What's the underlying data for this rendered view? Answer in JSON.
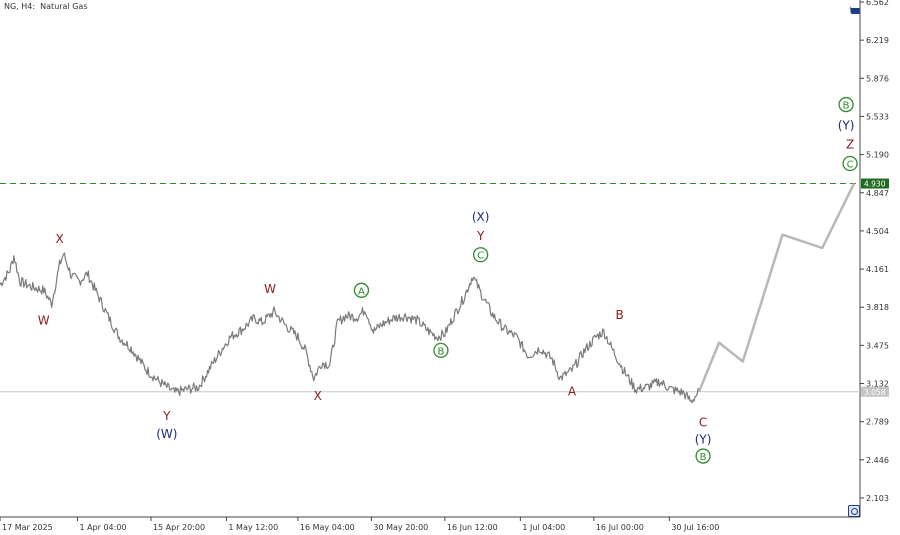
{
  "header": {
    "symbol": "NG, H4:",
    "name": "Natural Gas"
  },
  "corner_label": "t",
  "colors": {
    "price": "#7a7a7a",
    "projection": "#b8b8b8",
    "target_line": "#2e8b2e",
    "target_badge": "#1f6b1f",
    "current_line": "#c8c8c8",
    "current_badge": "#c4c4c4",
    "red": "#8b1a1a",
    "navy": "#1c2a78",
    "green": "#2e8b2e",
    "axis_text": "#333333"
  },
  "chart_data": {
    "type": "line",
    "title": "Natural Gas",
    "xlabel": "",
    "ylabel": "",
    "ylim": [
      1.95,
      6.562
    ],
    "x_ticks": [
      "17 Mar 2025",
      "1 Apr 04:00",
      "15 Apr 20:00",
      "1 May 12:00",
      "16 May 04:00",
      "30 May 20:00",
      "16 Jun 12:00",
      "1 Jul 04:00",
      "16 Jul 00:00",
      "30 Jul 16:00"
    ],
    "y_ticks": [
      "6.562",
      "6.219",
      "5.876",
      "5.533",
      "5.190",
      "4.847",
      "4.504",
      "4.161",
      "3.818",
      "3.475",
      "3.132",
      "2.789",
      "2.446",
      "2.103"
    ],
    "price_anchors": [
      [
        0,
        4.02
      ],
      [
        2.5,
        4.15
      ],
      [
        3.5,
        4.28
      ],
      [
        5,
        4.05
      ],
      [
        8,
        4.0
      ],
      [
        11,
        3.97
      ],
      [
        13,
        3.85
      ],
      [
        15,
        4.2
      ],
      [
        16,
        4.3
      ],
      [
        18,
        4.1
      ],
      [
        20,
        4.05
      ],
      [
        22,
        4.12
      ],
      [
        25,
        3.9
      ],
      [
        27,
        3.75
      ],
      [
        30,
        3.55
      ],
      [
        33,
        3.45
      ],
      [
        37,
        3.25
      ],
      [
        40,
        3.15
      ],
      [
        44,
        3.05
      ],
      [
        47,
        3.08
      ],
      [
        50,
        3.1
      ],
      [
        53,
        3.28
      ],
      [
        56,
        3.45
      ],
      [
        58,
        3.55
      ],
      [
        61,
        3.62
      ],
      [
        64,
        3.72
      ],
      [
        66,
        3.68
      ],
      [
        69,
        3.78
      ],
      [
        72,
        3.65
      ],
      [
        75,
        3.55
      ],
      [
        77,
        3.42
      ],
      [
        79,
        3.18
      ],
      [
        81,
        3.32
      ],
      [
        83,
        3.3
      ],
      [
        85,
        3.68
      ],
      [
        87,
        3.74
      ],
      [
        90,
        3.73
      ],
      [
        92,
        3.8
      ],
      [
        94,
        3.6
      ],
      [
        96,
        3.66
      ],
      [
        99,
        3.72
      ],
      [
        102,
        3.74
      ],
      [
        105,
        3.7
      ],
      [
        108,
        3.6
      ],
      [
        110,
        3.55
      ],
      [
        112,
        3.58
      ],
      [
        114,
        3.72
      ],
      [
        117,
        3.92
      ],
      [
        119,
        4.1
      ],
      [
        121,
        3.95
      ],
      [
        124,
        3.75
      ],
      [
        127,
        3.62
      ],
      [
        130,
        3.55
      ],
      [
        133,
        3.38
      ],
      [
        136,
        3.45
      ],
      [
        139,
        3.35
      ],
      [
        141,
        3.18
      ],
      [
        144,
        3.25
      ],
      [
        147,
        3.42
      ],
      [
        150,
        3.55
      ],
      [
        152,
        3.6
      ],
      [
        154,
        3.45
      ],
      [
        157,
        3.25
      ],
      [
        160,
        3.08
      ],
      [
        163,
        3.1
      ],
      [
        166,
        3.15
      ],
      [
        169,
        3.08
      ],
      [
        172,
        3.05
      ],
      [
        174,
        2.97
      ],
      [
        176,
        3.06
      ]
    ],
    "projection": [
      [
        176,
        3.06
      ],
      [
        181,
        3.5
      ],
      [
        187,
        3.33
      ],
      [
        197,
        4.47
      ],
      [
        207,
        4.35
      ],
      [
        215,
        4.93
      ]
    ],
    "target_level": 4.93,
    "target_label": "4.930",
    "current_level": 3.058,
    "current_label": "3.058",
    "annotations": [
      {
        "text": "X",
        "x": 15,
        "y": 4.43,
        "color": "red"
      },
      {
        "text": "W",
        "x": 11,
        "y": 3.7,
        "color": "red"
      },
      {
        "text": "Y",
        "x": 42,
        "y": 2.84,
        "color": "red"
      },
      {
        "text": "(W)",
        "x": 42,
        "y": 2.68,
        "color": "navy"
      },
      {
        "text": "W",
        "x": 68,
        "y": 3.98,
        "color": "red"
      },
      {
        "text": "X",
        "x": 80,
        "y": 3.02,
        "color": "red"
      },
      {
        "text": "A",
        "x": 91,
        "y": 3.97,
        "color": "green",
        "circled": true
      },
      {
        "text": "B",
        "x": 111,
        "y": 3.43,
        "color": "green",
        "circled": true
      },
      {
        "text": "(X)",
        "x": 121,
        "y": 4.63,
        "color": "navy"
      },
      {
        "text": "Y",
        "x": 121,
        "y": 4.46,
        "color": "red"
      },
      {
        "text": "C",
        "x": 121,
        "y": 4.29,
        "color": "green",
        "circled": true
      },
      {
        "text": "B",
        "x": 156,
        "y": 3.75,
        "color": "red"
      },
      {
        "text": "A",
        "x": 144,
        "y": 3.06,
        "color": "red"
      },
      {
        "text": "C",
        "x": 177,
        "y": 2.78,
        "color": "red"
      },
      {
        "text": "(Y)",
        "x": 177,
        "y": 2.63,
        "color": "navy"
      },
      {
        "text": "B",
        "x": 177,
        "y": 2.48,
        "color": "green",
        "circled": true
      },
      {
        "text": "B",
        "x": 213,
        "y": 5.64,
        "color": "green",
        "circled": true
      },
      {
        "text": "(Y)",
        "x": 213,
        "y": 5.45,
        "color": "navy"
      },
      {
        "text": "Z",
        "x": 214,
        "y": 5.28,
        "color": "red"
      },
      {
        "text": "C",
        "x": 214,
        "y": 5.11,
        "color": "green",
        "circled": true
      }
    ]
  }
}
